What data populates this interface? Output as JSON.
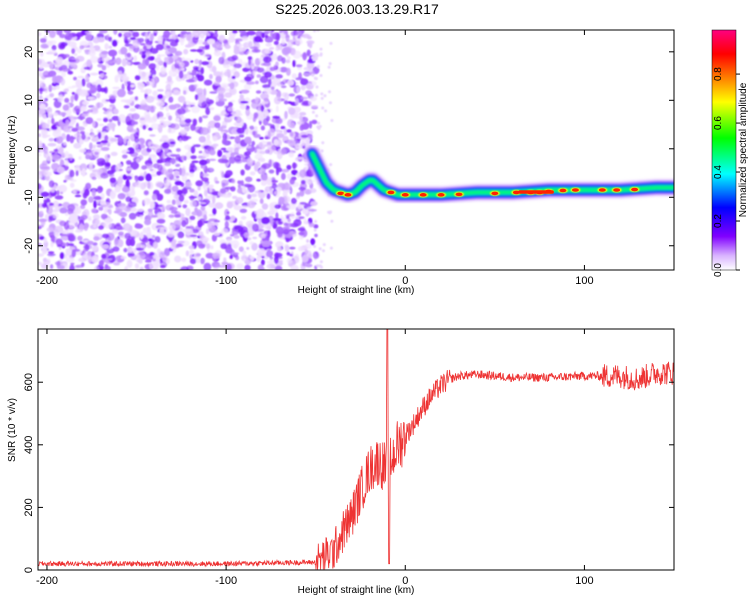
{
  "title": "S225.2026.003.13.29.R17",
  "chart_data": [
    {
      "type": "heatmap",
      "xlabel": "Height of straight line (km)",
      "ylabel": "Frequency (Hz)",
      "xlim": [
        -205,
        150
      ],
      "ylim": [
        -25,
        24.5
      ],
      "xticks": [
        -200,
        -100,
        0,
        100
      ],
      "yticks": [
        -20,
        -10,
        0,
        10,
        20
      ],
      "noise_region_x": [
        -205,
        -52
      ],
      "ridge": {
        "x": [
          -52,
          -48,
          -44,
          -40,
          -36,
          -32,
          -28,
          -24,
          -20,
          -18,
          -15,
          -12,
          -8,
          -4,
          0,
          10,
          20,
          40,
          60,
          80,
          100,
          120,
          140,
          150
        ],
        "y": [
          -1,
          -4,
          -7,
          -8.5,
          -9,
          -9.5,
          -9,
          -7.5,
          -6.5,
          -6.5,
          -7.5,
          -8.5,
          -9,
          -9.5,
          -9.5,
          -9.5,
          -9.5,
          -9,
          -9,
          -8.5,
          -8.5,
          -8.5,
          -8,
          -8
        ]
      },
      "colorbar": {
        "label": "Normalized spectral amplitude",
        "ticks": [
          0.0,
          0.2,
          0.4,
          0.6,
          0.8
        ],
        "tick_labels": [
          "0.0",
          "0.2",
          "0.4",
          "0.6",
          "0.8"
        ],
        "range": [
          0,
          0.98
        ],
        "colors": [
          "#ffffff",
          "#d9b3ff",
          "#8000ff",
          "#0000ff",
          "#00ffff",
          "#00ff00",
          "#ffff00",
          "#ff8000",
          "#ff0000",
          "#ff0080"
        ]
      }
    },
    {
      "type": "line",
      "xlabel": "Height of straight line (km)",
      "ylabel": "SNR (10 * v/v)",
      "xlim": [
        -205,
        150
      ],
      "ylim": [
        0,
        770
      ],
      "xticks": [
        -200,
        -100,
        0,
        100
      ],
      "yticks": [
        0,
        200,
        400,
        600
      ],
      "series": [
        {
          "color": "#ee3333",
          "x": [
            -205,
            -100,
            -50,
            -40,
            -35,
            -30,
            -25,
            -20,
            -15,
            -10,
            -5,
            0,
            5,
            10,
            15,
            20,
            25,
            30,
            40,
            60,
            80,
            100,
            120,
            130,
            140,
            150
          ],
          "y": [
            20,
            20,
            25,
            60,
            120,
            170,
            250,
            320,
            350,
            320,
            390,
            430,
            470,
            520,
            560,
            590,
            610,
            620,
            625,
            615,
            615,
            620,
            620,
            610,
            630,
            630
          ]
        }
      ]
    }
  ]
}
